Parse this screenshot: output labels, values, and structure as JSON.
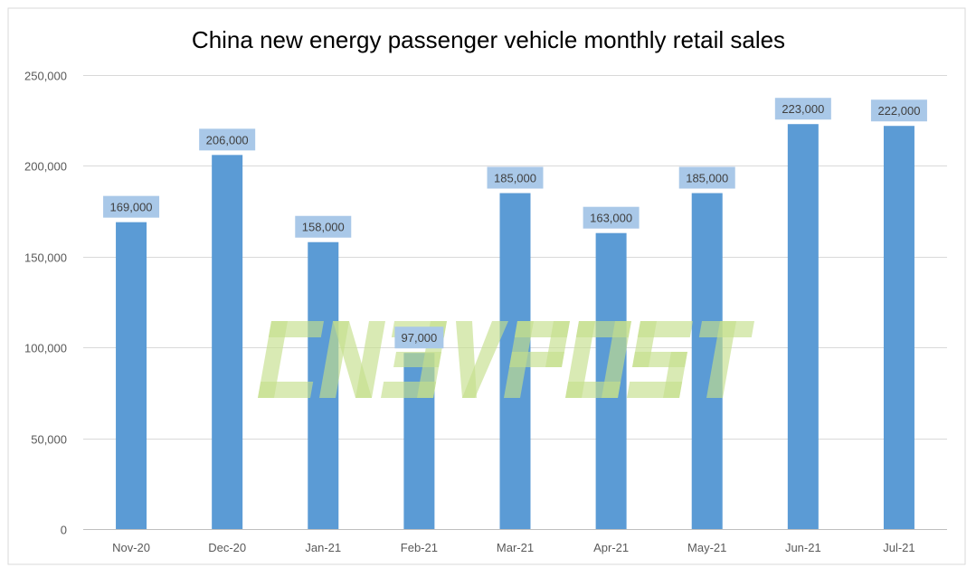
{
  "chart_data": {
    "type": "bar",
    "title": "China new energy passenger vehicle monthly retail sales",
    "categories": [
      "Nov-20",
      "Dec-20",
      "Jan-21",
      "Feb-21",
      "Mar-21",
      "Apr-21",
      "May-21",
      "Jun-21",
      "Jul-21"
    ],
    "values": [
      169000,
      206000,
      158000,
      97000,
      185000,
      163000,
      185000,
      223000,
      222000
    ],
    "data_labels": [
      "169,000",
      "206,000",
      "158,000",
      "97,000",
      "185,000",
      "163,000",
      "185,000",
      "223,000",
      "222,000"
    ],
    "xlabel": "",
    "ylabel": "",
    "ylim": [
      0,
      250000
    ],
    "yticks": [
      0,
      50000,
      100000,
      150000,
      200000,
      250000
    ],
    "ytick_labels": [
      "0",
      "50,000",
      "100,000",
      "150,000",
      "200,000",
      "250,000"
    ],
    "grid": true,
    "legend": "none",
    "colors": {
      "bar": "#5b9bd5",
      "label_bg": "#a9c8e8",
      "grid": "#d9d9d9",
      "watermark": "#c5de8c"
    }
  },
  "watermark": "CNEVPOST"
}
